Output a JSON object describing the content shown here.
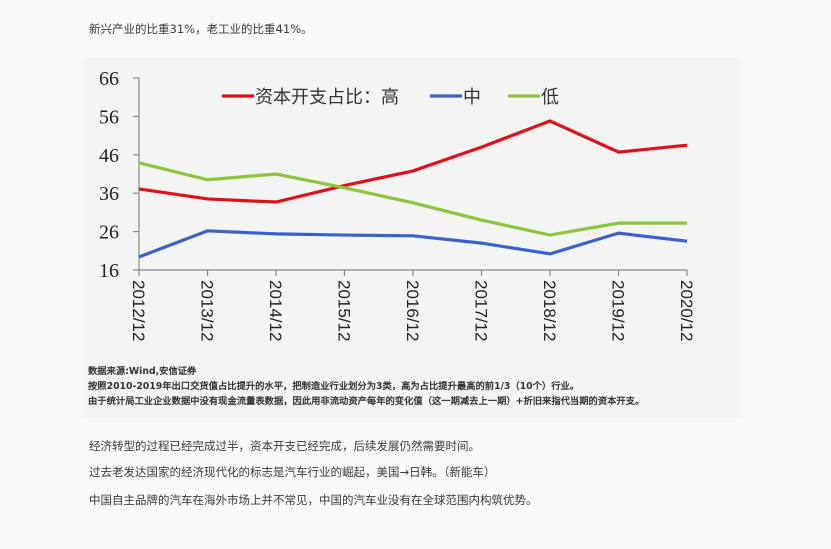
{
  "document": {
    "top_paragraph": "新兴产业的比重31%，老工业的比重41%。",
    "paragraphs": [
      "经济转型的过程已经完成过半，资本开支已经完成，后续发展仍然需要时间。",
      "过去老发达国家的经济现代化的标志是汽车行业的崛起，美国→日韩。（新能车）",
      "中国自主品牌的汽车在海外市场上并不常见，中国的汽车业没有在全球范围内构筑优势。"
    ]
  },
  "figure": {
    "notes": [
      "数据来源:Wind,安信证券",
      "按照2010-2019年出口交货值占比提升的水平，把制造业行业划分为3类，高为占比提升最高的前1/3（10个）行业。",
      "由于统计局工业企业数据中没有现金流量表数据，因此用非流动资产每年的变化值（这一期减去上一期）+折旧来指代当期的资本开支。"
    ],
    "legend": {
      "prefix": "资本开支占比：",
      "items": [
        "高",
        "中",
        "低"
      ]
    }
  },
  "chart_data": {
    "type": "line",
    "title": "",
    "xlabel": "",
    "ylabel": "",
    "categories": [
      "2012/12",
      "2013/12",
      "2014/12",
      "2015/12",
      "2016/12",
      "2017/12",
      "2018/12",
      "2019/12",
      "2020/12"
    ],
    "yticks": [
      16,
      26,
      36,
      46,
      56,
      66
    ],
    "ylim": [
      16,
      66
    ],
    "grid": false,
    "legend_position": "top",
    "legend_title": "资本开支占比：",
    "series": [
      {
        "name": "高",
        "color": "#e0101a",
        "values": [
          37.1,
          34.5,
          33.7,
          38.0,
          41.8,
          48.0,
          54.8,
          46.7,
          48.5
        ]
      },
      {
        "name": "中",
        "color": "#3a62c8",
        "values": [
          19.4,
          26.2,
          25.4,
          25.1,
          24.9,
          23.0,
          20.2,
          25.6,
          23.5
        ]
      },
      {
        "name": "低",
        "color": "#8cc43c",
        "values": [
          43.9,
          39.5,
          41.0,
          37.4,
          33.5,
          29.0,
          25.1,
          28.2,
          28.2
        ]
      }
    ]
  }
}
